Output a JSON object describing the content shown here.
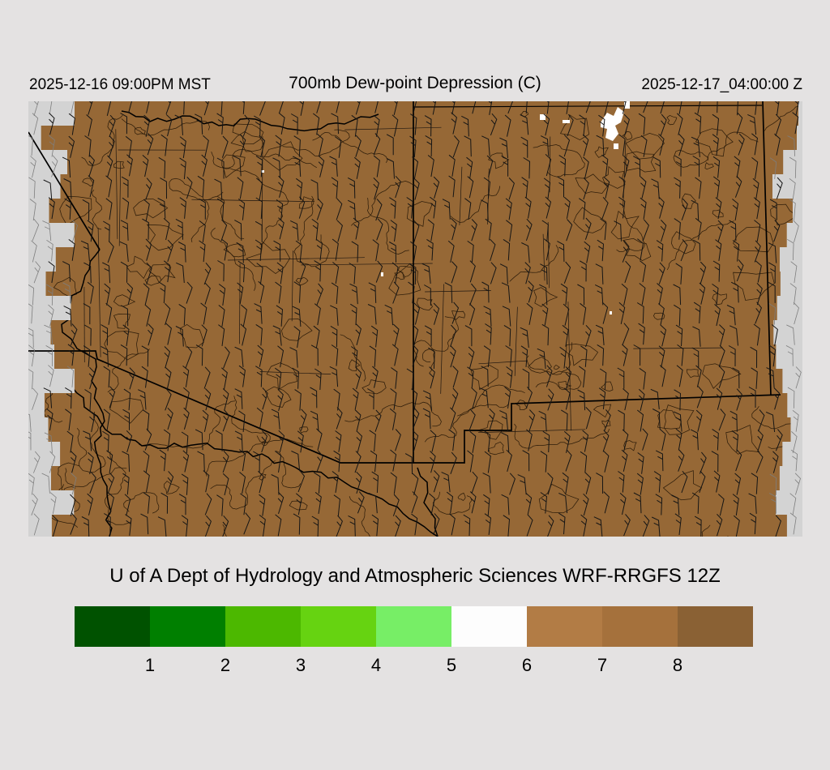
{
  "header": {
    "valid_time_local": "2025-12-16 09:00PM MST",
    "title": "700mb Dew-point Depression (C)",
    "valid_time_utc": "2025-12-17_04:00:00 Z"
  },
  "footer": {
    "credit": "U of A Dept of Hydrology and Atmospheric Sciences WRF-RRGFS 12Z"
  },
  "colorbar": {
    "tick_labels": [
      "1",
      "2",
      "3",
      "4",
      "5",
      "6",
      "7",
      "8"
    ],
    "segment_colors": [
      "#005200",
      "#007F00",
      "#4CB800",
      "#66D311",
      "#77EE66",
      "#FDFDFD",
      "#B27C45",
      "#A5713C",
      "#8A6134"
    ]
  },
  "map": {
    "description": "Shaded 700mb dew-point depression with wind barbs over Arizona and New Mexico, WRF model output",
    "colors": {
      "page_background": "#E4E2E2",
      "map_background": "#D3D3D3",
      "fill": "#966836",
      "contour": "#2E1D0A",
      "county": "#1E1610",
      "boundary": "#000000",
      "river": "#000000",
      "barb": "#151515",
      "barb_outside": "#7E7E7E",
      "cloud_white": "#FFFFFF"
    }
  },
  "chart_data": {
    "type": "heatmap",
    "title": "700mb Dew-point Depression (C)",
    "scale_ticks": [
      1,
      2,
      3,
      4,
      5,
      6,
      7,
      8
    ],
    "scale_colors": [
      "#005200",
      "#007F00",
      "#4CB800",
      "#66D311",
      "#77EE66",
      "#FDFDFD",
      "#B27C45",
      "#A5713C",
      "#8A6134"
    ],
    "legend_position": "bottom",
    "dominant_shading": "brown (7-8+ C) over nearly the entire domain with a few small white (5-6 C) pockets in north-central New Mexico"
  }
}
